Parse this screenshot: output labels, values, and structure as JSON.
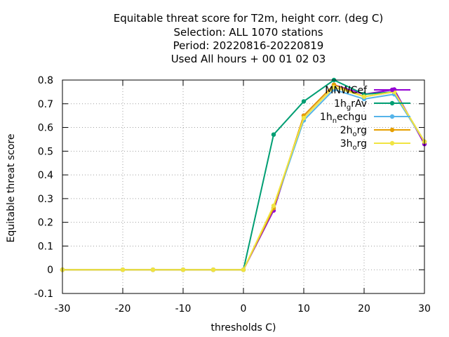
{
  "chart_data": {
    "type": "line",
    "title_lines": [
      "Equitable threat score  for T2m, height corr. (deg C)",
      "Selection: ALL   1070 stations",
      "Period: 20220816-20220819",
      "Used  All hours + 00 01 02 03"
    ],
    "xlabel": "thresholds C)",
    "ylabel": "Equitable threat score",
    "xlim": [
      -30,
      30
    ],
    "ylim": [
      -0.1,
      0.8
    ],
    "xticks": [
      -30,
      -20,
      -10,
      0,
      10,
      20,
      30
    ],
    "yticks": [
      -0.1,
      0,
      0.1,
      0.2,
      0.3,
      0.4,
      0.5,
      0.6,
      0.7,
      0.8
    ],
    "grid": true,
    "legend_position": "top-right",
    "x": [
      -30,
      -20,
      -15,
      -10,
      -5,
      0,
      5,
      10,
      15,
      20,
      25,
      30
    ],
    "series": [
      {
        "name_base": "MNWC",
        "name_sub": "",
        "name_tail": "ef",
        "color": "#9400d3",
        "values": [
          0,
          0,
          0,
          0,
          0,
          0,
          0.25,
          0.65,
          0.78,
          0.74,
          0.76,
          0.53
        ]
      },
      {
        "name_base": "1h",
        "name_sub": "g",
        "name_tail": "rAv",
        "color": "#009e73",
        "values": [
          0,
          0,
          0,
          0,
          0,
          0,
          0.57,
          0.71,
          0.8,
          0.74,
          0.75,
          0.54
        ]
      },
      {
        "name_base": "1h",
        "name_sub": "n",
        "name_tail": "echgu",
        "color": "#56b4e9",
        "values": [
          0,
          0,
          0,
          0,
          0,
          0,
          0.26,
          0.63,
          0.76,
          0.72,
          0.74,
          0.54
        ]
      },
      {
        "name_base": "2h",
        "name_sub": "o",
        "name_tail": "rg",
        "color": "#e69f00",
        "values": [
          0,
          0,
          0,
          0,
          0,
          0,
          0.26,
          0.65,
          0.78,
          0.73,
          0.75,
          0.54
        ]
      },
      {
        "name_base": "3h",
        "name_sub": "o",
        "name_tail": "rg",
        "color": "#f0e442",
        "values": [
          0,
          0,
          0,
          0,
          0,
          0,
          0.27,
          0.64,
          0.77,
          0.73,
          0.75,
          0.54
        ]
      }
    ]
  }
}
